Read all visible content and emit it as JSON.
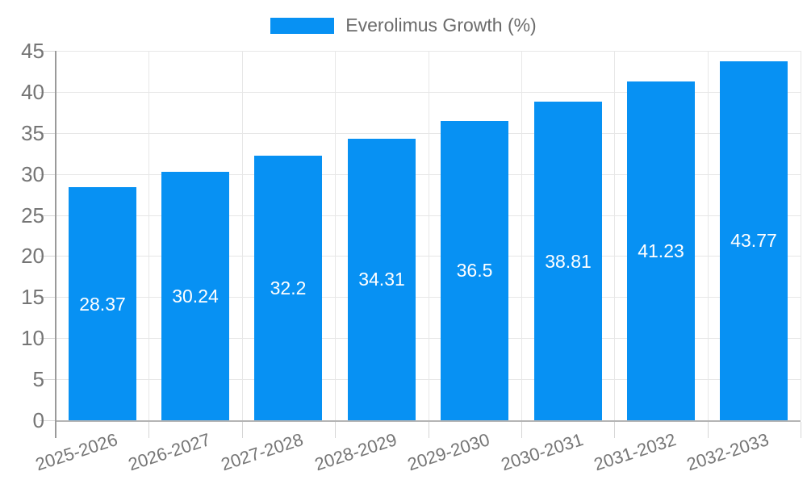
{
  "chart_data": {
    "type": "bar",
    "title": "",
    "legend_label": "Everolimus Growth (%)",
    "legend_position": "top",
    "categories": [
      "2025-2026",
      "2026-2027",
      "2027-2028",
      "2028-2029",
      "2029-2030",
      "2030-2031",
      "2031-2032",
      "2032-2033"
    ],
    "values": [
      28.37,
      30.24,
      32.2,
      34.31,
      36.5,
      38.81,
      41.23,
      43.77
    ],
    "xlabel": "",
    "ylabel": "",
    "ylim": [
      0,
      45
    ],
    "yticks": [
      0,
      5,
      10,
      15,
      20,
      25,
      30,
      35,
      40,
      45
    ],
    "grid": true,
    "x_label_rotation_deg": -18,
    "value_labels_inside_bars": true,
    "colors": {
      "bar": "#0791f3",
      "grid_line": "#e7e7e7",
      "tick_line": "#d6d6d6",
      "y_axis_line": "#9a9a9a",
      "x_baseline": "#b4b4b4",
      "axis_text": "#757575",
      "legend_text": "#6b6b6b",
      "value_label_text": "#ffffff",
      "background": "#ffffff"
    }
  }
}
